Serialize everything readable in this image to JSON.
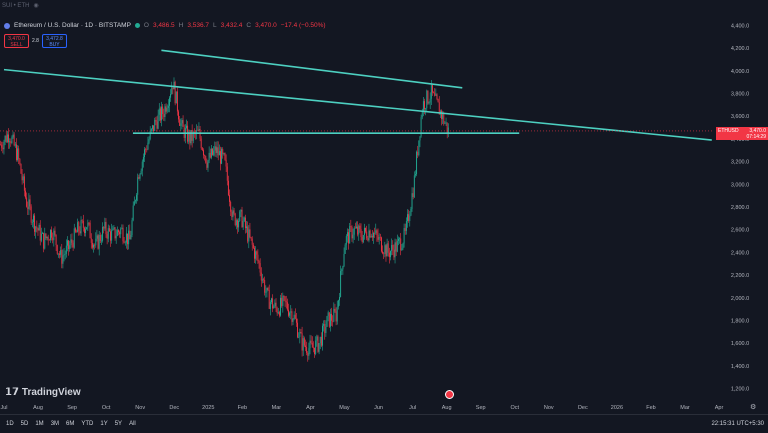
{
  "topbar": {
    "pair": "SUI • ETH"
  },
  "legend": {
    "symbol": "Ethereum / U.S. Dollar · 1D · BITSTAMP",
    "open_label": "O",
    "open": "3,486.5",
    "high_label": "H",
    "high": "3,536.7",
    "low_label": "L",
    "low": "3,432.4",
    "close_label": "C",
    "close": "3,470.0",
    "change": "−17.4 (−0.50%)"
  },
  "trade": {
    "sell_price": "3,470.0",
    "sell_label": "SELL",
    "spread": "2.8",
    "buy_price": "3,472.8",
    "buy_label": "BUY"
  },
  "price_tag": {
    "symbol": "ETHUSD",
    "price": "3,470.0",
    "countdown": "07:14:29"
  },
  "brand": {
    "name": "TradingView"
  },
  "time_ranges": [
    "1D",
    "5D",
    "1M",
    "3M",
    "6M",
    "YTD",
    "1Y",
    "5Y",
    "All"
  ],
  "clock": "22:15:31 UTC+5:30",
  "colors": {
    "up": "#22ab94",
    "down": "#f23645",
    "trendline": "#4dd0c1",
    "background": "#131722"
  },
  "chart_data": {
    "type": "candlestick",
    "title": "Ethereum / U.S. Dollar · 1D · BITSTAMP",
    "y_ticks": [
      "4,400.0",
      "4,200.0",
      "4,000.0",
      "3,800.0",
      "3,600.0",
      "3,400.0",
      "3,200.0",
      "3,000.0",
      "2,800.0",
      "2,600.0",
      "2,400.0",
      "2,200.0",
      "2,000.0",
      "1,800.0",
      "1,600.0",
      "1,400.0",
      "1,200.0"
    ],
    "x_ticks": [
      "Jul",
      "Aug",
      "Sep",
      "Oct",
      "Nov",
      "Dec",
      "2025",
      "Feb",
      "Mar",
      "Apr",
      "May",
      "Jun",
      "Jul",
      "Aug",
      "Sep",
      "Oct",
      "Nov",
      "Dec",
      "2026",
      "Feb",
      "Mar",
      "Apr"
    ],
    "ylim": [
      1100,
      4500
    ],
    "approx_closes": [
      [
        "2024-07",
        3350
      ],
      [
        "2024-07",
        3450
      ],
      [
        "2024-07",
        3250
      ],
      [
        "2024-08",
        2850
      ],
      [
        "2024-08",
        2650
      ],
      [
        "2024-08",
        2500
      ],
      [
        "2024-08",
        2600
      ],
      [
        "2024-09",
        2350
      ],
      [
        "2024-09",
        2450
      ],
      [
        "2024-09",
        2600
      ],
      [
        "2024-09",
        2650
      ],
      [
        "2024-10",
        2450
      ],
      [
        "2024-10",
        2600
      ],
      [
        "2024-10",
        2550
      ],
      [
        "2024-10",
        2600
      ],
      [
        "2024-11",
        2500
      ],
      [
        "2024-11",
        3100
      ],
      [
        "2024-11",
        3350
      ],
      [
        "2024-11",
        3550
      ],
      [
        "2024-12",
        3650
      ],
      [
        "2024-12",
        3900
      ],
      [
        "2024-12",
        3500
      ],
      [
        "2024-12",
        3400
      ],
      [
        "2025-01",
        3450
      ],
      [
        "2025-01",
        3200
      ],
      [
        "2025-01",
        3300
      ],
      [
        "2025-01",
        3200
      ],
      [
        "2025-02",
        2700
      ],
      [
        "2025-02",
        2700
      ],
      [
        "2025-02",
        2500
      ],
      [
        "2025-02",
        2300
      ],
      [
        "2025-03",
        2000
      ],
      [
        "2025-03",
        1900
      ],
      [
        "2025-03",
        1950
      ],
      [
        "2025-03",
        1850
      ],
      [
        "2025-04",
        1600
      ],
      [
        "2025-04",
        1550
      ],
      [
        "2025-04",
        1600
      ],
      [
        "2025-04",
        1800
      ],
      [
        "2025-05",
        1850
      ],
      [
        "2025-05",
        2500
      ],
      [
        "2025-05",
        2600
      ],
      [
        "2025-05",
        2550
      ],
      [
        "2025-06",
        2600
      ],
      [
        "2025-06",
        2500
      ],
      [
        "2025-06",
        2400
      ],
      [
        "2025-06",
        2450
      ],
      [
        "2025-07",
        2550
      ],
      [
        "2025-07",
        3000
      ],
      [
        "2025-07",
        3700
      ],
      [
        "2025-07",
        3800
      ],
      [
        "2025-08",
        3650
      ],
      [
        "2025-08",
        3470
      ]
    ],
    "trendlines": [
      {
        "name": "upper",
        "from": [
          "2024-11-20",
          4180
        ],
        "to": [
          "2025-08-15",
          3850
        ]
      },
      {
        "name": "long",
        "from": [
          "2024-07-01",
          4010
        ],
        "to": [
          "2026-03-25",
          3390
        ]
      },
      {
        "name": "horizontal",
        "from": [
          "2024-10-25",
          3450
        ],
        "to": [
          "2025-10-05",
          3450
        ]
      }
    ]
  }
}
